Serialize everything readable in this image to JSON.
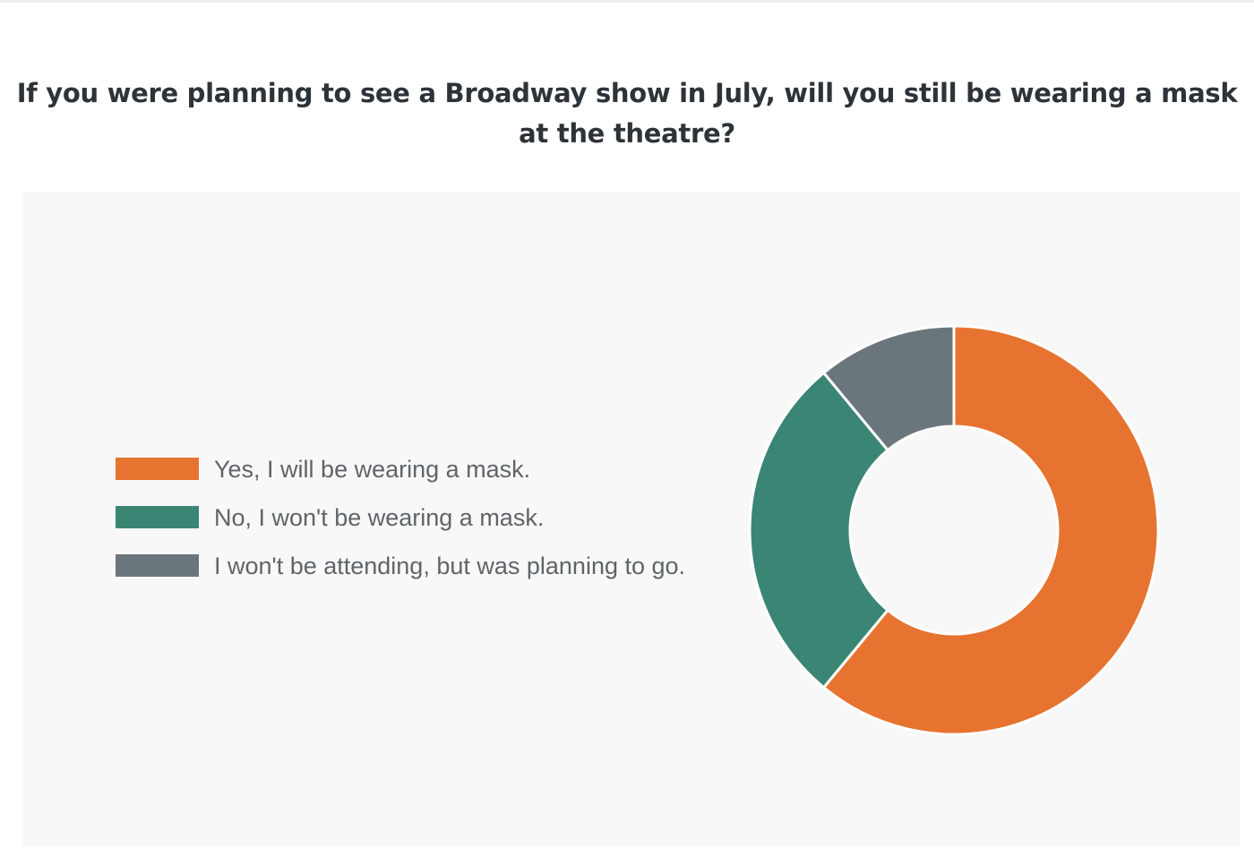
{
  "chart_data": {
    "type": "pie",
    "variant": "donut",
    "title": "If you were planning to see a Broadway show in July, will you still be wearing a mask at the theatre?",
    "legend_position": "left",
    "categories": [
      "Yes, I will be wearing a mask.",
      "No, I won't be wearing a mask.",
      "I won't be attending, but was planning to go."
    ],
    "values": [
      61,
      28,
      11
    ],
    "colors": [
      "#e6732f",
      "#3b8574",
      "#6b767c"
    ]
  }
}
